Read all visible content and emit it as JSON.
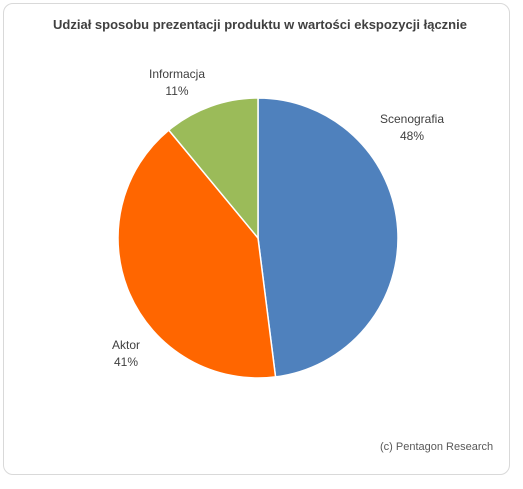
{
  "chart_data": {
    "type": "pie",
    "title": "Udział sposobu prezentacji produktu w wartości ekspozycji łącznie",
    "slices": [
      {
        "label": "Scenografia",
        "percent_label": "48%",
        "value": 48,
        "color": "#4F81BD"
      },
      {
        "label": "Aktor",
        "percent_label": "41%",
        "value": 41,
        "color": "#FF6600"
      },
      {
        "label": "Informacja",
        "percent_label": "11%",
        "value": 11,
        "color": "#9BBB59"
      }
    ],
    "start": "12 o'clock",
    "direction": "clockwise",
    "legend": "none"
  },
  "footer": {
    "source": "(c) Pentagon Research"
  }
}
